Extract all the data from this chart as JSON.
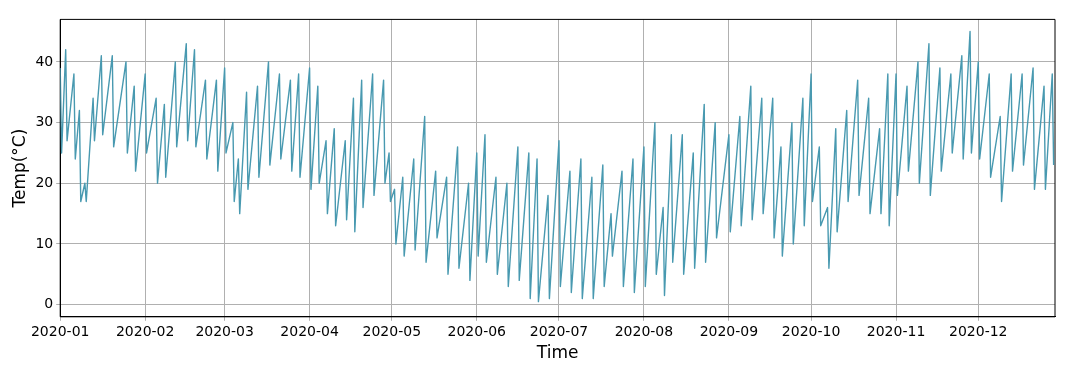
{
  "chart_data": {
    "type": "line",
    "xlabel": "Time",
    "ylabel": "Temp(°C)",
    "grid": true,
    "xlim": [
      "2020-01-01",
      "2020-12-29"
    ],
    "xticks": [
      "2020-01",
      "2020-02",
      "2020-03",
      "2020-04",
      "2020-05",
      "2020-06",
      "2020-07",
      "2020-08",
      "2020-09",
      "2020-10",
      "2020-11",
      "2020-12"
    ],
    "ylim": [
      -2,
      47
    ],
    "yticks": [
      0,
      10,
      20,
      30,
      40
    ],
    "series": [
      {
        "color": "#4899b0",
        "x": [
          "2020-01-01",
          "2020-01-01T12:00",
          "2020-01-03",
          "2020-01-03T12:00",
          "2020-01-06",
          "2020-01-06T12:00",
          "2020-01-08",
          "2020-01-08T12:00",
          "2020-01-10",
          "2020-01-10T12:00",
          "2020-01-13",
          "2020-01-13T12:00",
          "2020-01-16",
          "2020-01-16T12:00",
          "2020-01-20",
          "2020-01-20T12:00",
          "2020-01-25",
          "2020-01-25T12:00",
          "2020-01-28",
          "2020-01-28T12:00",
          "2020-02-01",
          "2020-02-01T12:00",
          "2020-02-05",
          "2020-02-05T12:00",
          "2020-02-08",
          "2020-02-08T12:00",
          "2020-02-12",
          "2020-02-12T12:00",
          "2020-02-16",
          "2020-02-16T12:00",
          "2020-02-19",
          "2020-02-19T12:00",
          "2020-02-23",
          "2020-02-23T12:00",
          "2020-02-27",
          "2020-02-27T12:00",
          "2020-03-01",
          "2020-03-01T12:00",
          "2020-03-04",
          "2020-03-04T12:00",
          "2020-03-06",
          "2020-03-06T12:00",
          "2020-03-09",
          "2020-03-09T12:00",
          "2020-03-13",
          "2020-03-13T12:00",
          "2020-03-17",
          "2020-03-17T12:00",
          "2020-03-21",
          "2020-03-21T12:00",
          "2020-03-25",
          "2020-03-25T12:00",
          "2020-03-28",
          "2020-03-28T12:00",
          "2020-04-01",
          "2020-04-01T12:00",
          "2020-04-04",
          "2020-04-04T12:00",
          "2020-04-07",
          "2020-04-07T12:00",
          "2020-04-10",
          "2020-04-10T12:00",
          "2020-04-14",
          "2020-04-14T12:00",
          "2020-04-17",
          "2020-04-17T12:00",
          "2020-04-20",
          "2020-04-20T12:00",
          "2020-04-24",
          "2020-04-24T12:00",
          "2020-04-28",
          "2020-04-28T12:00",
          "2020-04-30",
          "2020-04-30T12:00",
          "2020-05-02",
          "2020-05-02T12:00",
          "2020-05-05",
          "2020-05-05T12:00",
          "2020-05-09",
          "2020-05-09T12:00",
          "2020-05-13",
          "2020-05-13T12:00",
          "2020-05-17",
          "2020-05-17T12:00",
          "2020-05-21",
          "2020-05-21T12:00",
          "2020-05-25",
          "2020-05-25T12:00",
          "2020-05-29",
          "2020-05-29T12:00",
          "2020-06-01",
          "2020-06-01T12:00",
          "2020-06-04",
          "2020-06-04T12:00",
          "2020-06-08",
          "2020-06-08T12:00",
          "2020-06-12",
          "2020-06-12T12:00",
          "2020-06-16",
          "2020-06-16T12:00",
          "2020-06-20",
          "2020-06-20T12:00",
          "2020-06-23",
          "2020-06-23T12:00",
          "2020-06-27",
          "2020-06-27T12:00",
          "2020-07-01",
          "2020-07-01T12:00",
          "2020-07-05",
          "2020-07-05T12:00",
          "2020-07-09",
          "2020-07-09T12:00",
          "2020-07-13",
          "2020-07-13T12:00",
          "2020-07-17",
          "2020-07-17T12:00",
          "2020-07-20",
          "2020-07-20T12:00",
          "2020-07-24",
          "2020-07-24T12:00",
          "2020-07-28",
          "2020-07-28T12:00",
          "2020-08-01",
          "2020-08-01T12:00",
          "2020-08-05",
          "2020-08-05T12:00",
          "2020-08-08",
          "2020-08-08T12:00",
          "2020-08-11",
          "2020-08-11T12:00",
          "2020-08-15",
          "2020-08-15T12:00",
          "2020-08-19",
          "2020-08-19T12:00",
          "2020-08-23",
          "2020-08-23T12:00",
          "2020-08-27",
          "2020-08-27T12:00",
          "2020-09-01",
          "2020-09-01T12:00",
          "2020-09-05",
          "2020-09-05T12:00",
          "2020-09-09",
          "2020-09-09T12:00",
          "2020-09-13",
          "2020-09-13T12:00",
          "2020-09-17",
          "2020-09-17T12:00",
          "2020-09-20",
          "2020-09-20T12:00",
          "2020-09-24",
          "2020-09-24T12:00",
          "2020-09-28",
          "2020-09-28T12:00",
          "2020-10-01",
          "2020-10-01T12:00",
          "2020-10-04",
          "2020-10-04T12:00",
          "2020-10-07",
          "2020-10-07T12:00",
          "2020-10-10",
          "2020-10-10T12:00",
          "2020-10-14",
          "2020-10-14T12:00",
          "2020-10-18",
          "2020-10-18T12:00",
          "2020-10-22",
          "2020-10-22T12:00",
          "2020-10-26",
          "2020-10-26T12:00",
          "2020-10-29",
          "2020-10-29T12:00",
          "2020-11-01",
          "2020-11-01T12:00",
          "2020-11-05",
          "2020-11-05T12:00",
          "2020-11-09",
          "2020-11-09T12:00",
          "2020-11-13",
          "2020-11-13T12:00",
          "2020-11-17",
          "2020-11-17T12:00",
          "2020-11-21",
          "2020-11-21T12:00",
          "2020-11-25",
          "2020-11-25T12:00",
          "2020-11-28",
          "2020-11-28T12:00",
          "2020-12-01",
          "2020-12-01T12:00",
          "2020-12-05",
          "2020-12-05T12:00",
          "2020-12-09",
          "2020-12-09T12:00",
          "2020-12-13",
          "2020-12-13T12:00",
          "2020-12-17",
          "2020-12-17T12:00",
          "2020-12-21",
          "2020-12-21T12:00",
          "2020-12-25",
          "2020-12-25T12:00",
          "2020-12-28",
          "2020-12-28T12:00"
        ],
        "values": [
          39,
          25,
          42,
          27,
          38,
          24,
          32,
          17,
          20,
          17,
          34,
          27,
          41,
          28,
          41,
          26,
          40,
          25,
          36,
          22,
          38,
          25,
          34,
          20,
          33,
          21,
          40,
          26,
          43,
          27,
          42,
          26,
          37,
          24,
          37,
          22,
          39,
          25,
          30,
          17,
          24,
          15,
          35,
          19,
          36,
          21,
          40,
          23,
          38,
          24,
          37,
          22,
          38,
          21,
          39,
          19,
          36,
          20,
          27,
          15,
          29,
          13,
          27,
          14,
          34,
          12,
          37,
          16,
          38,
          18,
          37,
          20,
          25,
          17,
          19,
          10,
          21,
          8,
          24,
          9,
          31,
          7,
          22,
          11,
          21,
          5,
          26,
          6,
          20,
          4,
          25,
          8,
          28,
          7,
          21,
          5,
          20,
          3,
          26,
          4,
          25,
          1,
          24,
          0.5,
          18,
          1,
          27,
          3,
          22,
          2,
          24,
          1,
          21,
          1,
          23,
          3,
          15,
          8,
          22,
          3,
          24,
          2,
          26,
          3,
          30,
          5,
          16,
          1.5,
          28,
          7,
          28,
          5,
          25,
          6,
          33,
          7,
          30,
          11,
          28,
          12,
          31,
          13,
          36,
          14,
          34,
          15,
          34,
          11,
          26,
          8,
          30,
          10,
          34,
          13,
          38,
          17,
          26,
          13,
          16,
          6,
          29,
          12,
          32,
          17,
          37,
          18,
          34,
          15,
          29,
          15,
          38,
          13,
          38,
          18,
          36,
          22,
          40,
          20,
          43,
          18,
          39,
          22,
          38,
          25,
          41,
          24,
          45,
          25,
          40,
          24,
          38,
          21,
          31,
          17,
          38,
          22,
          38,
          23,
          39,
          19,
          36,
          19,
          38,
          23
        ]
      }
    ]
  }
}
